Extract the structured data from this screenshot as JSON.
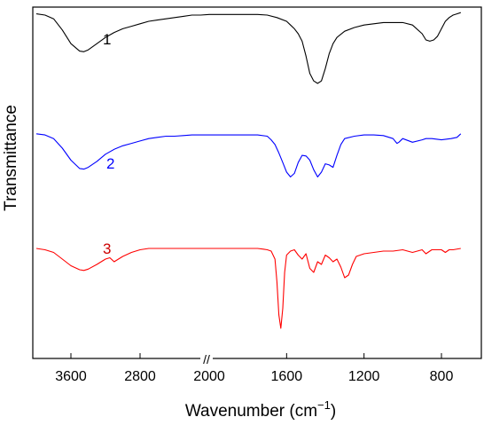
{
  "chart_data": {
    "type": "line",
    "xlabel": "Wavenumber (cm",
    "xlabel_sup": "−1",
    "xlabel_close": ")",
    "ylabel": "Transmittance",
    "x_ticks": [
      "3600",
      "2800",
      "2000",
      "1600",
      "1200",
      "800"
    ],
    "axis_break": "//",
    "x_reversed": true,
    "x_scale": "broken",
    "grid": false,
    "legend": "none",
    "series": [
      {
        "name": "1",
        "color": "#000000",
        "x": [
          4000,
          3900,
          3800,
          3700,
          3600,
          3500,
          3450,
          3400,
          3300,
          3200,
          3100,
          3000,
          2900,
          2800,
          2700,
          2600,
          2500,
          2400,
          2300,
          2200,
          2100,
          2000,
          1900,
          1800,
          1750,
          1700,
          1650,
          1600,
          1580,
          1560,
          1540,
          1520,
          1500,
          1480,
          1460,
          1440,
          1420,
          1400,
          1380,
          1360,
          1340,
          1300,
          1250,
          1200,
          1150,
          1100,
          1050,
          1000,
          950,
          900,
          880,
          860,
          840,
          820,
          800,
          780,
          760,
          740,
          720,
          700
        ],
        "y": [
          0.96,
          0.95,
          0.92,
          0.83,
          0.72,
          0.66,
          0.655,
          0.67,
          0.72,
          0.77,
          0.81,
          0.84,
          0.86,
          0.88,
          0.9,
          0.91,
          0.92,
          0.93,
          0.94,
          0.95,
          0.95,
          0.955,
          0.955,
          0.955,
          0.955,
          0.95,
          0.93,
          0.9,
          0.87,
          0.84,
          0.8,
          0.74,
          0.62,
          0.48,
          0.42,
          0.4,
          0.42,
          0.52,
          0.64,
          0.72,
          0.77,
          0.82,
          0.85,
          0.87,
          0.88,
          0.89,
          0.89,
          0.89,
          0.87,
          0.8,
          0.75,
          0.74,
          0.75,
          0.78,
          0.84,
          0.9,
          0.93,
          0.95,
          0.96,
          0.97
        ]
      },
      {
        "name": "2",
        "color": "#0000ff",
        "x": [
          4000,
          3900,
          3800,
          3700,
          3600,
          3500,
          3450,
          3400,
          3300,
          3200,
          3100,
          3000,
          2900,
          2800,
          2700,
          2600,
          2500,
          2400,
          2300,
          2200,
          2100,
          2000,
          1900,
          1800,
          1750,
          1700,
          1680,
          1660,
          1640,
          1620,
          1600,
          1580,
          1560,
          1540,
          1520,
          1500,
          1480,
          1460,
          1440,
          1420,
          1400,
          1380,
          1360,
          1340,
          1320,
          1300,
          1250,
          1200,
          1150,
          1100,
          1050,
          1030,
          1020,
          1000,
          950,
          900,
          880,
          850,
          800,
          750,
          720,
          700
        ],
        "y": [
          0.92,
          0.91,
          0.88,
          0.8,
          0.7,
          0.63,
          0.625,
          0.64,
          0.69,
          0.75,
          0.79,
          0.82,
          0.84,
          0.86,
          0.88,
          0.89,
          0.9,
          0.9,
          0.905,
          0.91,
          0.91,
          0.91,
          0.91,
          0.91,
          0.91,
          0.9,
          0.87,
          0.83,
          0.76,
          0.68,
          0.6,
          0.56,
          0.59,
          0.68,
          0.74,
          0.735,
          0.7,
          0.62,
          0.56,
          0.6,
          0.67,
          0.66,
          0.64,
          0.74,
          0.83,
          0.88,
          0.9,
          0.91,
          0.91,
          0.905,
          0.88,
          0.84,
          0.85,
          0.88,
          0.85,
          0.87,
          0.88,
          0.88,
          0.87,
          0.88,
          0.89,
          0.92
        ]
      },
      {
        "name": "3",
        "color": "#ff0000",
        "x": [
          4000,
          3900,
          3800,
          3700,
          3600,
          3500,
          3450,
          3400,
          3300,
          3200,
          3150,
          3100,
          3050,
          3000,
          2900,
          2800,
          2700,
          2600,
          2500,
          2400,
          2300,
          2200,
          2100,
          2000,
          1900,
          1800,
          1750,
          1720,
          1700,
          1680,
          1660,
          1650,
          1640,
          1630,
          1620,
          1610,
          1600,
          1580,
          1560,
          1540,
          1520,
          1500,
          1480,
          1460,
          1440,
          1420,
          1400,
          1380,
          1360,
          1340,
          1320,
          1300,
          1280,
          1260,
          1240,
          1200,
          1150,
          1100,
          1050,
          1000,
          950,
          900,
          880,
          850,
          800,
          780,
          760,
          740,
          700
        ],
        "y": [
          0.8,
          0.79,
          0.77,
          0.72,
          0.67,
          0.64,
          0.635,
          0.645,
          0.68,
          0.72,
          0.73,
          0.7,
          0.72,
          0.74,
          0.77,
          0.79,
          0.8,
          0.8,
          0.8,
          0.8,
          0.8,
          0.8,
          0.8,
          0.8,
          0.8,
          0.8,
          0.8,
          0.795,
          0.79,
          0.78,
          0.72,
          0.55,
          0.3,
          0.2,
          0.35,
          0.62,
          0.75,
          0.78,
          0.79,
          0.75,
          0.72,
          0.76,
          0.65,
          0.62,
          0.7,
          0.68,
          0.75,
          0.73,
          0.7,
          0.72,
          0.66,
          0.58,
          0.6,
          0.68,
          0.74,
          0.76,
          0.77,
          0.78,
          0.78,
          0.79,
          0.77,
          0.79,
          0.76,
          0.79,
          0.79,
          0.77,
          0.79,
          0.79,
          0.8
        ]
      }
    ]
  }
}
